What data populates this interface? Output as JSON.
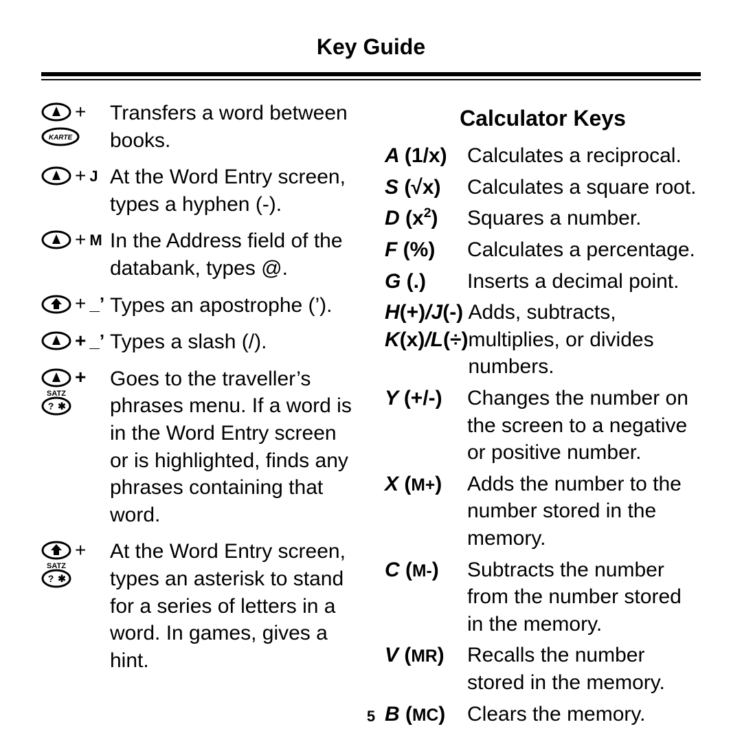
{
  "header": "Key Guide",
  "page_number": "5",
  "left_items": [
    {
      "icons": [
        "oval-a",
        "karte"
      ],
      "plus": true,
      "desc": "Transfers a word between books."
    },
    {
      "icons": [
        "oval-a"
      ],
      "plus": true,
      "key_letter": "J",
      "desc": "At the Word Entry screen, types a hyphen (-)."
    },
    {
      "icons": [
        "oval-a"
      ],
      "plus": true,
      "key_letter": "M",
      "desc": "In the Address field of the databank, types @."
    },
    {
      "icons": [
        "oval-shift"
      ],
      "plus": true,
      "key_quote": "_’",
      "desc": "Types an apostrophe (’)."
    },
    {
      "icons": [
        "oval-a"
      ],
      "plus_bold": true,
      "key_quote": "_’",
      "desc": "Types a slash (/)."
    },
    {
      "icons": [
        "oval-a",
        "satz"
      ],
      "plus_bold": true,
      "desc": "Goes to the traveller’s phrases menu. If a word is in the Word Entry screen or is highlighted, finds any phrases containing that word."
    },
    {
      "icons": [
        "oval-shift",
        "satz"
      ],
      "plus": true,
      "desc": "At the Word Entry screen, types an asterisk to stand for a series of letters in a word. In games, gives a hint."
    }
  ],
  "calc_title": "Calculator Keys",
  "calc_items": [
    {
      "key_html": "A <span class='paren'>(1/x)</span>",
      "desc": "Calculates a reciprocal."
    },
    {
      "key_html": "S <span class='paren'>(<span class='radic'>√</span>x)</span>",
      "desc": "Calculates a square root."
    },
    {
      "key_html": "D <span class='paren'>(x<span class='sup2'>2</span>)</span>",
      "desc": "Squares a number."
    },
    {
      "key_html": "F <span class='paren'>(%)</span>",
      "desc": "Calculates a percentage."
    },
    {
      "key_html": "G <span class='paren'>(.)</span>",
      "desc": "Inserts a decimal point."
    },
    {
      "key_html": "H<span class='paren'>(+)</span>/J<span class='paren'>(-)</span><br>K<span class='paren'>(x)</span>/L<span class='paren'>(÷)</span>",
      "desc": "Adds, subtracts, multiplies, or divides numbers."
    },
    {
      "key_html": "Y <span class='paren'>(+/-)</span>",
      "desc": "Changes the number on the screen to a negative or positive number."
    },
    {
      "key_html": "X <span class='paren'>(<span class='sc'>M+</span>)</span>",
      "desc": "Adds the number to the number stored in the memory."
    },
    {
      "key_html": "C <span class='paren'>(<span class='sc'>M-</span>)</span>",
      "desc": "Subtracts the number from the number stored in the memory."
    },
    {
      "key_html": "V <span class='paren'>(<span class='sc'>MR</span>)</span>",
      "desc": "Recalls the number stored in the memory."
    },
    {
      "key_html": "B <span class='paren'>(<span class='sc'>MC</span>)</span>",
      "desc": "Clears the memory."
    }
  ]
}
